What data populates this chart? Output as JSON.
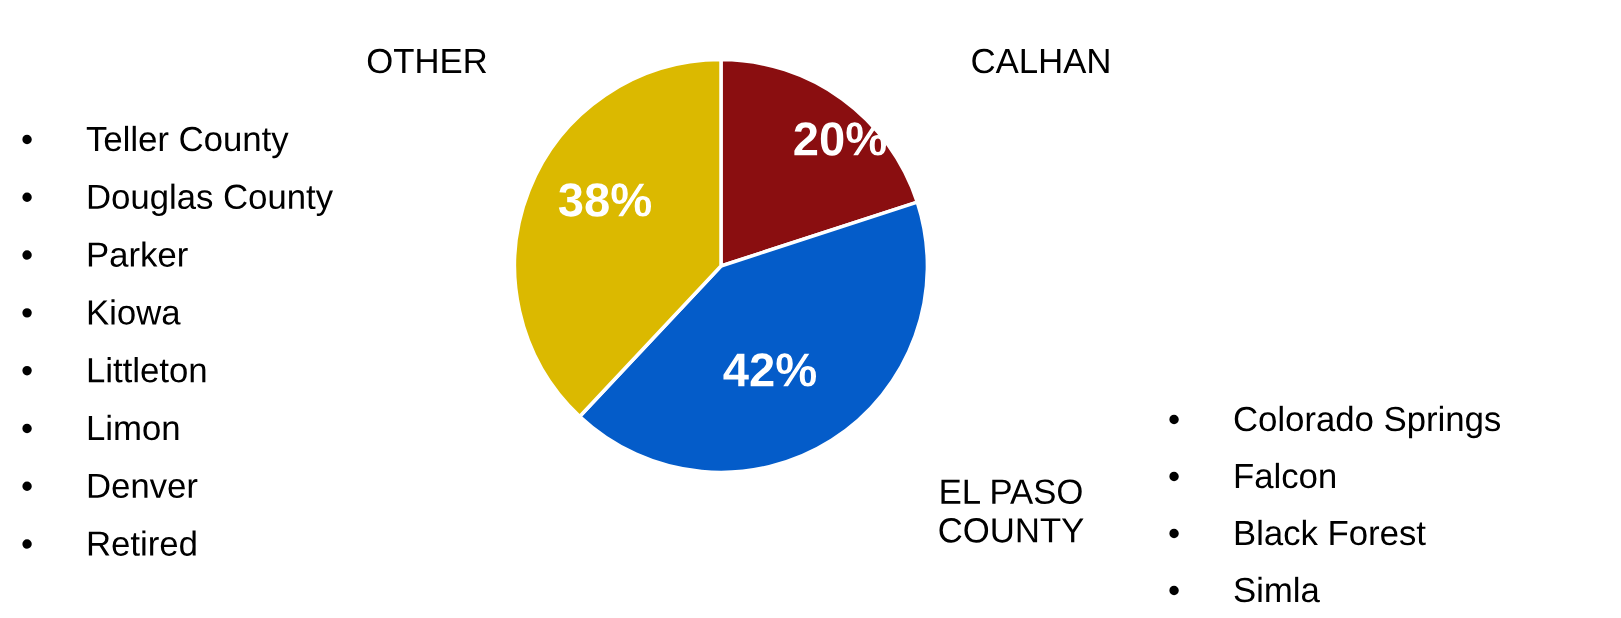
{
  "chart_data": {
    "type": "pie",
    "categories": [
      "CALHAN",
      "EL PASO\nCOUNTY",
      "OTHER"
    ],
    "values": [
      20,
      42,
      38
    ],
    "value_labels": [
      "20%",
      "42%",
      "38%"
    ],
    "colors": [
      "#8a0e10",
      "#045cc9",
      "#dbb900"
    ],
    "legend": false,
    "annotations": [
      "•\tTeller County",
      "•\tDouglas County",
      "•\tParker",
      "•\tKiowa",
      "•\tLittleton",
      "•\tLimon",
      "•\tDenver",
      "•\tRetired",
      "•\tColorado Springs",
      "•\tFalcon",
      "•\tBlack Forest",
      "•\tSimla"
    ]
  }
}
